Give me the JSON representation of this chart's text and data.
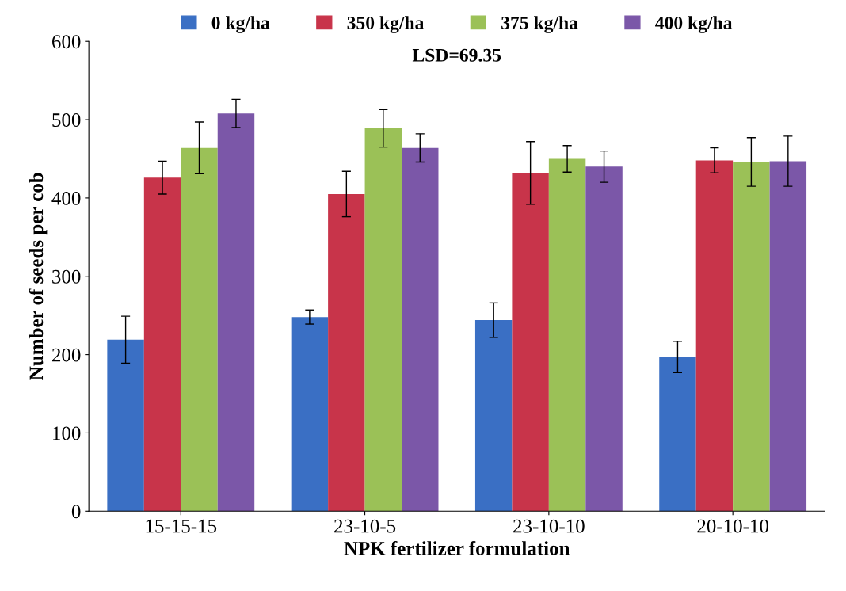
{
  "chart_data": {
    "type": "bar",
    "categories": [
      "15-15-15",
      "23-10-5",
      "23-10-10",
      "20-10-10"
    ],
    "xlabel": "NPK fertilizer formulation",
    "ylabel": "Number of seeds per cob",
    "ylim": [
      0,
      600
    ],
    "yticks": [
      0,
      100,
      200,
      300,
      400,
      500,
      600
    ],
    "grid": false,
    "legend": "top",
    "annotations": [
      "LSD=69.35"
    ],
    "series": [
      {
        "name": "0 kg/ha",
        "color": "#3a6fc4",
        "values": [
          219,
          248,
          244,
          197
        ],
        "errors": [
          30,
          9,
          22,
          20
        ]
      },
      {
        "name": "350 kg/ha",
        "color": "#c8344a",
        "values": [
          426,
          405,
          432,
          448
        ],
        "errors": [
          21,
          29,
          40,
          16
        ]
      },
      {
        "name": "375 kg/ha",
        "color": "#9bc157",
        "values": [
          464,
          489,
          450,
          446
        ],
        "errors": [
          33,
          24,
          17,
          31
        ]
      },
      {
        "name": "400 kg/ha",
        "color": "#7b57a8",
        "values": [
          508,
          464,
          440,
          447
        ],
        "errors": [
          18,
          18,
          20,
          32
        ]
      }
    ]
  }
}
